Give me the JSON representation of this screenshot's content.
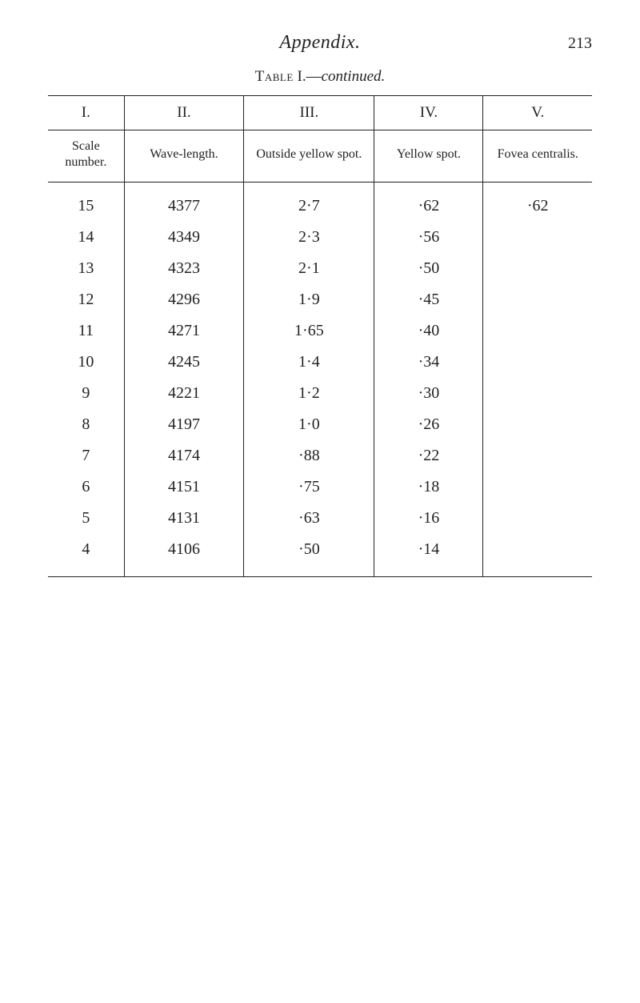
{
  "header": {
    "title": "Appendix.",
    "page_number": "213"
  },
  "caption": {
    "prefix": "Table",
    "roman": " I.—",
    "suffix_italic": "continued."
  },
  "table": {
    "type": "table",
    "background_color": "#ffffff",
    "rule_color": "#222222",
    "font_family": "Times New Roman",
    "header_roman": [
      "I.",
      "II.",
      "III.",
      "IV.",
      "V."
    ],
    "header_labels": [
      "Scale number.",
      "Wave-length.",
      "Outside yellow spot.",
      "Yellow spot.",
      "Fovea centralis."
    ],
    "columns_width_pct": [
      14,
      22,
      24,
      20,
      20
    ],
    "body_fontsize_pt": 15,
    "header_fontsize_pt": 12,
    "rows": [
      [
        "15",
        "4377",
        "2·7",
        "·62",
        "·62"
      ],
      [
        "14",
        "4349",
        "2·3",
        "·56",
        ""
      ],
      [
        "13",
        "4323",
        "2·1",
        "·50",
        ""
      ],
      [
        "12",
        "4296",
        "1·9",
        "·45",
        ""
      ],
      [
        "11",
        "4271",
        "1·65",
        "·40",
        ""
      ],
      [
        "10",
        "4245",
        "1·4",
        "·34",
        ""
      ],
      [
        "9",
        "4221",
        "1·2",
        "·30",
        ""
      ],
      [
        "8",
        "4197",
        "1·0",
        "·26",
        ""
      ],
      [
        "7",
        "4174",
        "·88",
        "·22",
        ""
      ],
      [
        "6",
        "4151",
        "·75",
        "·18",
        ""
      ],
      [
        "5",
        "4131",
        "·63",
        "·16",
        ""
      ],
      [
        "4",
        "4106",
        "·50",
        "·14",
        ""
      ]
    ]
  }
}
